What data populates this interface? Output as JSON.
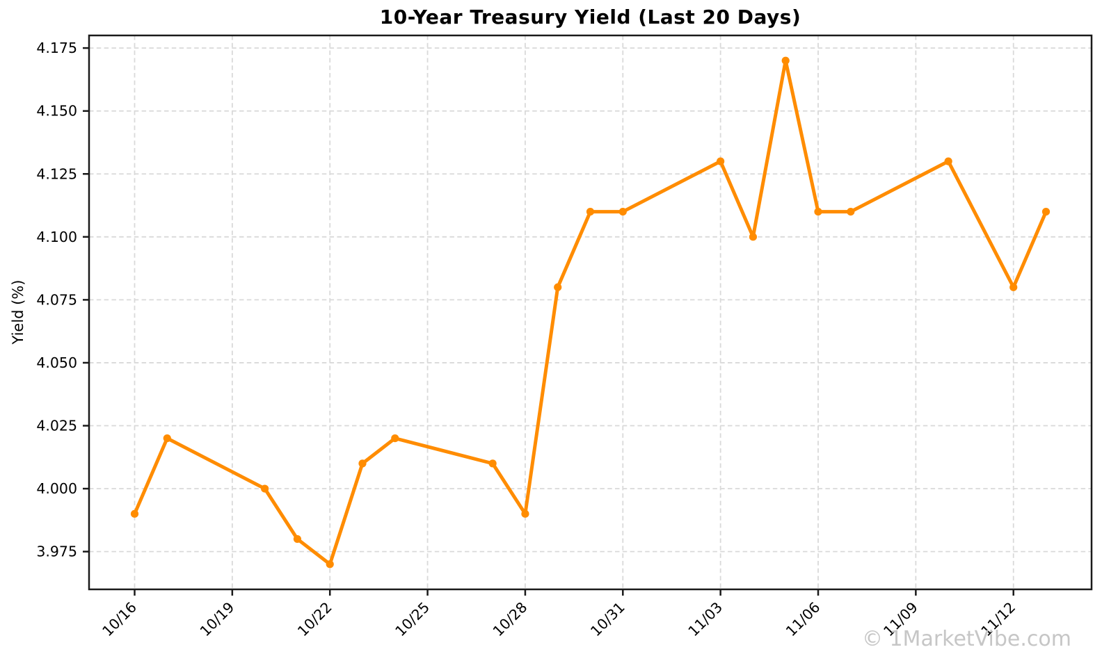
{
  "chart_data": {
    "type": "line",
    "title": "10-Year Treasury Yield (Last 20 Days)",
    "xlabel": "",
    "ylabel": "Yield (%)",
    "grid": true,
    "legend_position": "none",
    "line_color": "#FF8C00",
    "grid_color": "#d9d9d9",
    "spine_color": "#1a1a1a",
    "xlim_days": [
      -1.4,
      29.4
    ],
    "ylim": [
      3.96,
      4.18
    ],
    "x_tick_labels": [
      "10/16",
      "10/19",
      "10/22",
      "10/25",
      "10/28",
      "10/31",
      "11/03",
      "11/06",
      "11/09",
      "11/12"
    ],
    "x_tick_days": [
      0,
      3,
      6,
      9,
      12,
      15,
      18,
      21,
      24,
      27
    ],
    "y_tick_labels": [
      "3.975",
      "4.000",
      "4.025",
      "4.050",
      "4.075",
      "4.100",
      "4.125",
      "4.150",
      "4.175"
    ],
    "y_tick_values": [
      3.975,
      4.0,
      4.025,
      4.05,
      4.075,
      4.1,
      4.125,
      4.15,
      4.175
    ],
    "series": [
      {
        "name": "10-Year Treasury Yield",
        "dates": [
          "10/16",
          "10/17",
          "10/20",
          "10/21",
          "10/22",
          "10/23",
          "10/24",
          "10/27",
          "10/28",
          "10/29",
          "10/30",
          "10/31",
          "11/03",
          "11/04",
          "11/05",
          "11/06",
          "11/07",
          "11/10",
          "11/12",
          "11/13"
        ],
        "x_days": [
          0,
          1,
          4,
          5,
          6,
          7,
          8,
          11,
          12,
          13,
          14,
          15,
          18,
          19,
          20,
          21,
          22,
          25,
          27,
          28
        ],
        "values": [
          3.99,
          4.02,
          4.0,
          3.98,
          3.97,
          4.01,
          4.02,
          4.01,
          3.99,
          4.08,
          4.11,
          4.11,
          4.13,
          4.1,
          4.17,
          4.11,
          4.11,
          4.13,
          4.08,
          4.11
        ]
      }
    ]
  },
  "watermark": {
    "text": "© 1MarketVibe.com"
  }
}
